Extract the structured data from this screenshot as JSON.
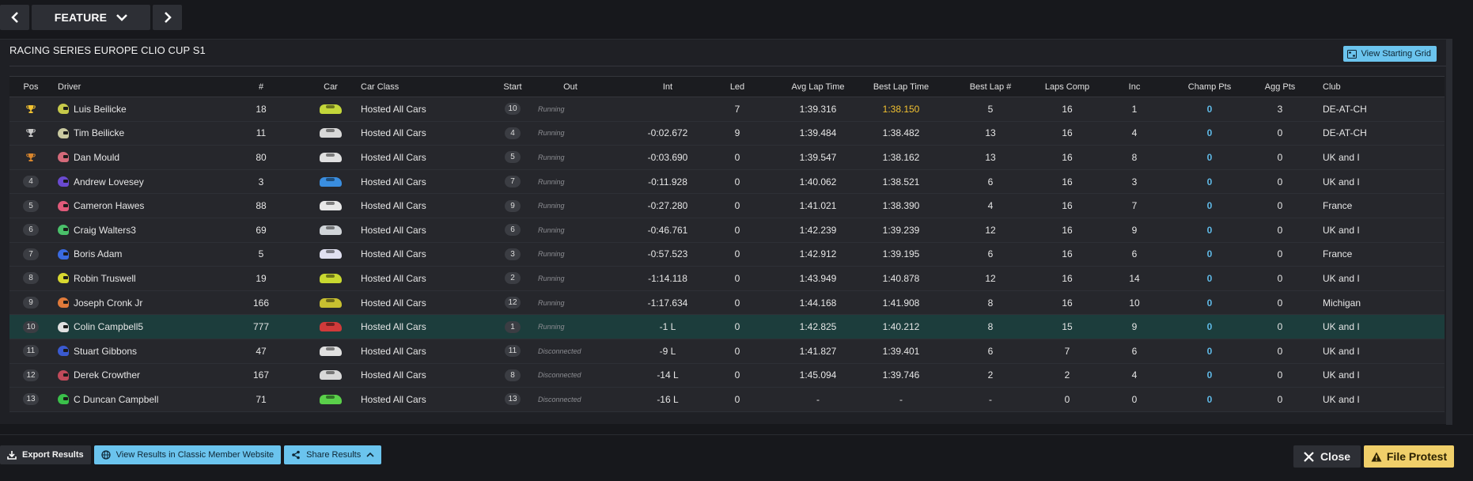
{
  "nav": {
    "feature_label": "FEATURE"
  },
  "panel": {
    "title": "RACING SERIES EUROPE CLIO CUP S1",
    "grid_button": "View Starting Grid"
  },
  "columns": {
    "pos": "Pos",
    "driver": "Driver",
    "num": "#",
    "car": "Car",
    "car_class": "Car Class",
    "start": "Start",
    "out": "Out",
    "int": "Int",
    "led": "Led",
    "avg_lap": "Avg Lap Time",
    "best_lap": "Best Lap Time",
    "best_lap_num": "Best Lap #",
    "laps_comp": "Laps Comp",
    "inc": "Inc",
    "champ_pts": "Champ Pts",
    "agg_pts": "Agg Pts",
    "club": "Club"
  },
  "colors": {
    "gold_trophy": "#f2c230",
    "silver_trophy": "#c8c8c8",
    "bronze_trophy": "#d9862d",
    "accent": "#6bc4ee",
    "fastest_lap": "#f2c230"
  },
  "rows": [
    {
      "pos": "",
      "trophy": "gold-trophy-icon",
      "driver": "Luis Beilicke",
      "num": "18",
      "car_color": "#c3d63a",
      "helmet_color": "#c6c94a",
      "car_class": "Hosted All Cars",
      "start": "10",
      "out": "Running",
      "int": "",
      "led": "7",
      "avg": "1:39.316",
      "best": "1:38.150",
      "best_fastest": true,
      "best_num": "5",
      "laps": "16",
      "inc": "1",
      "champ": "0",
      "agg": "3",
      "club": "DE-AT-CH"
    },
    {
      "pos": "",
      "trophy": "silver-trophy-icon",
      "driver": "Tim Beilicke",
      "num": "11",
      "car_color": "#d8d8d8",
      "helmet_color": "#c9c9a0",
      "car_class": "Hosted All Cars",
      "start": "4",
      "out": "Running",
      "int": "-0:02.672",
      "led": "9",
      "avg": "1:39.484",
      "best": "1:38.482",
      "best_num": "13",
      "laps": "16",
      "inc": "4",
      "champ": "0",
      "agg": "0",
      "club": "DE-AT-CH"
    },
    {
      "pos": "",
      "trophy": "bronze-trophy-icon",
      "driver": "Dan Mould",
      "num": "80",
      "car_color": "#e0e0e0",
      "helmet_color": "#d46a7a",
      "car_class": "Hosted All Cars",
      "start": "5",
      "out": "Running",
      "int": "-0:03.690",
      "led": "0",
      "avg": "1:39.547",
      "best": "1:38.162",
      "best_num": "13",
      "laps": "16",
      "inc": "8",
      "champ": "0",
      "agg": "0",
      "club": "UK and I"
    },
    {
      "pos": "4",
      "driver": "Andrew Lovesey",
      "num": "3",
      "car_color": "#3a8ee0",
      "helmet_color": "#6a4ad0",
      "car_class": "Hosted All Cars",
      "start": "7",
      "out": "Running",
      "int": "-0:11.928",
      "led": "0",
      "avg": "1:40.062",
      "best": "1:38.521",
      "best_num": "6",
      "laps": "16",
      "inc": "3",
      "champ": "0",
      "agg": "0",
      "club": "UK and I"
    },
    {
      "pos": "5",
      "driver": "Cameron Hawes",
      "num": "88",
      "car_color": "#e8e8e8",
      "helmet_color": "#e05a7a",
      "car_class": "Hosted All Cars",
      "start": "9",
      "out": "Running",
      "int": "-0:27.280",
      "led": "0",
      "avg": "1:41.021",
      "best": "1:38.390",
      "best_num": "4",
      "laps": "16",
      "inc": "7",
      "champ": "0",
      "agg": "0",
      "club": "France"
    },
    {
      "pos": "6",
      "driver": "Craig Walters3",
      "num": "69",
      "car_color": "#d0d4d8",
      "helmet_color": "#4ac06a",
      "car_class": "Hosted All Cars",
      "start": "6",
      "out": "Running",
      "int": "-0:46.761",
      "led": "0",
      "avg": "1:42.239",
      "best": "1:39.239",
      "best_num": "12",
      "laps": "16",
      "inc": "9",
      "champ": "0",
      "agg": "0",
      "club": "UK and I"
    },
    {
      "pos": "7",
      "driver": "Boris Adam",
      "num": "5",
      "car_color": "#e0e0f0",
      "helmet_color": "#3a6ae0",
      "car_class": "Hosted All Cars",
      "start": "3",
      "out": "Running",
      "int": "-0:57.523",
      "led": "0",
      "avg": "1:42.912",
      "best": "1:39.195",
      "best_num": "6",
      "laps": "16",
      "inc": "6",
      "champ": "0",
      "agg": "0",
      "club": "France"
    },
    {
      "pos": "8",
      "driver": "Robin Truswell",
      "num": "19",
      "car_color": "#c8d830",
      "helmet_color": "#d8d830",
      "car_class": "Hosted All Cars",
      "start": "2",
      "out": "Running",
      "int": "-1:14.118",
      "led": "0",
      "avg": "1:43.949",
      "best": "1:40.878",
      "best_num": "12",
      "laps": "16",
      "inc": "14",
      "champ": "0",
      "agg": "0",
      "club": "UK and I"
    },
    {
      "pos": "9",
      "driver": "Joseph Cronk Jr",
      "num": "166",
      "car_color": "#c8c030",
      "helmet_color": "#e07a3a",
      "car_class": "Hosted All Cars",
      "start": "12",
      "out": "Running",
      "int": "-1:17.634",
      "led": "0",
      "avg": "1:44.168",
      "best": "1:41.908",
      "best_num": "8",
      "laps": "16",
      "inc": "10",
      "champ": "0",
      "agg": "0",
      "club": "Michigan"
    },
    {
      "pos": "10",
      "driver": "Colin Campbell5",
      "num": "777",
      "car_color": "#d03a3a",
      "helmet_color": "#e0e0e0",
      "car_class": "Hosted All Cars",
      "start": "1",
      "out": "Running",
      "int": "-1 L",
      "led": "0",
      "avg": "1:42.825",
      "best": "1:40.212",
      "best_num": "8",
      "laps": "15",
      "inc": "9",
      "champ": "0",
      "agg": "0",
      "club": "UK and I",
      "highlight": true
    },
    {
      "pos": "11",
      "driver": "Stuart Gibbons",
      "num": "47",
      "car_color": "#e0e0e0",
      "helmet_color": "#3a5ad0",
      "car_class": "Hosted All Cars",
      "start": "11",
      "out": "Disconnected",
      "int": "-9 L",
      "led": "0",
      "avg": "1:41.827",
      "best": "1:39.401",
      "best_num": "6",
      "laps": "7",
      "inc": "6",
      "champ": "0",
      "agg": "0",
      "club": "UK and I"
    },
    {
      "pos": "12",
      "driver": "Derek Crowther",
      "num": "167",
      "car_color": "#d8d8d8",
      "helmet_color": "#c04a5a",
      "car_class": "Hosted All Cars",
      "start": "8",
      "out": "Disconnected",
      "int": "-14 L",
      "led": "0",
      "avg": "1:45.094",
      "best": "1:39.746",
      "best_num": "2",
      "laps": "2",
      "inc": "4",
      "champ": "0",
      "agg": "0",
      "club": "UK and I"
    },
    {
      "pos": "13",
      "driver": "C Duncan Campbell",
      "num": "71",
      "car_color": "#5ad04a",
      "helmet_color": "#3ac04a",
      "car_class": "Hosted All Cars",
      "start": "13",
      "out": "Disconnected",
      "int": "-16 L",
      "led": "0",
      "avg": "-",
      "best": "-",
      "best_num": "-",
      "laps": "0",
      "inc": "0",
      "champ": "0",
      "agg": "0",
      "club": "UK and I"
    }
  ],
  "footer": {
    "export": "Export Results",
    "classic": "View Results in Classic Member Website",
    "share": "Share Results",
    "close": "Close",
    "protest": "File Protest"
  }
}
